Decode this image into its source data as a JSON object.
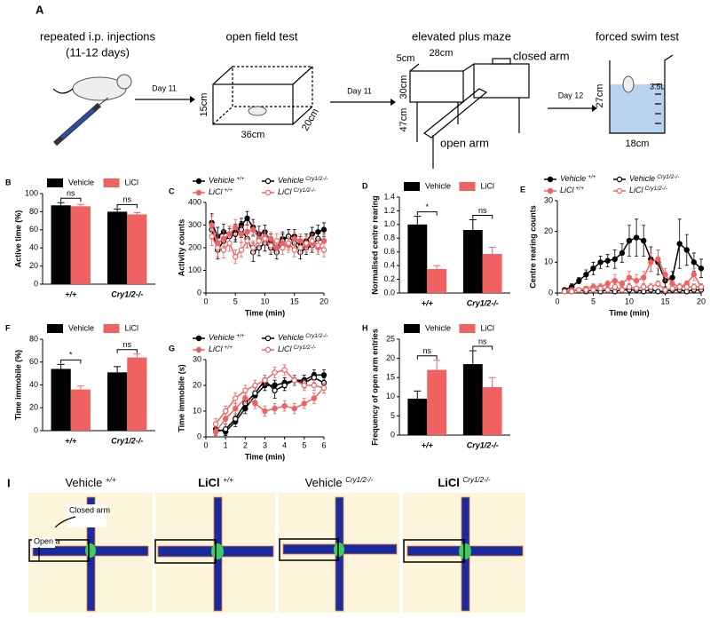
{
  "panel_a": {
    "letter": "A",
    "steps": [
      "repeated i.p. injections",
      "open field test",
      "elevated plus maze",
      "forced swim test"
    ],
    "duration": "(11-12 days)",
    "days": [
      "Day 11",
      "Day 11",
      "Day 12"
    ],
    "box_dims": [
      "15cm",
      "36cm",
      "20cm"
    ],
    "maze_dims": [
      "5cm",
      "28cm",
      "30cm",
      "47cm"
    ],
    "maze_labels": [
      "closed arm",
      "open arm"
    ],
    "beaker_dims": [
      "27cm",
      "18cm"
    ],
    "volume": "3.5L"
  },
  "chart_data": [
    {
      "type": "bar",
      "panel": "B",
      "ylabel": "Active time (%)",
      "categories": [
        "+/+",
        "Cry1/2-/-"
      ],
      "series": [
        {
          "name": "Vehicle",
          "color": "#000000",
          "values": [
            87,
            80
          ],
          "errors": [
            3,
            3
          ]
        },
        {
          "name": "LiCl",
          "color": "#f06262",
          "values": [
            86,
            77
          ],
          "errors": [
            2,
            2
          ]
        }
      ],
      "ylim": [
        0,
        100
      ],
      "yticks": [
        0,
        20,
        40,
        60,
        80,
        100
      ],
      "significance": [
        "ns",
        "ns"
      ]
    },
    {
      "type": "line",
      "panel": "C",
      "xlabel": "Time (min)",
      "ylabel": "Activity counts",
      "x": [
        1,
        2,
        3,
        4,
        5,
        6,
        7,
        8,
        9,
        10,
        11,
        12,
        13,
        14,
        15,
        16,
        17,
        18,
        19,
        20
      ],
      "xlim": [
        0,
        20
      ],
      "xticks": [
        0,
        5,
        10,
        15,
        20
      ],
      "ylim": [
        0,
        400
      ],
      "yticks": [
        0,
        100,
        200,
        300,
        400
      ],
      "series": [
        {
          "name": "Vehicle",
          "sup": "+/+",
          "color": "#000000",
          "marker": "filled",
          "values": [
            310,
            250,
            270,
            260,
            270,
            300,
            330,
            290,
            260,
            270,
            230,
            200,
            240,
            250,
            250,
            220,
            230,
            260,
            270,
            280
          ],
          "errors": [
            40,
            40,
            35,
            35,
            35,
            30,
            30,
            35,
            35,
            30,
            30,
            30,
            30,
            30,
            30,
            30,
            30,
            30,
            30,
            30
          ]
        },
        {
          "name": "Vehicle",
          "sup": "Cry1/2-/-",
          "color": "#000000",
          "marker": "open",
          "values": [
            280,
            190,
            230,
            250,
            260,
            280,
            240,
            180,
            200,
            220,
            200,
            180,
            230,
            250,
            220,
            180,
            200,
            210,
            240,
            230
          ],
          "errors": [
            40,
            40,
            35,
            35,
            35,
            35,
            40,
            40,
            35,
            35,
            30,
            30,
            30,
            30,
            30,
            30,
            30,
            30,
            30,
            30
          ]
        },
        {
          "name": "LiCl",
          "sup": "+/+",
          "color": "#f06262",
          "marker": "filled",
          "values": [
            300,
            220,
            240,
            260,
            290,
            260,
            270,
            280,
            240,
            250,
            240,
            200,
            220,
            210,
            240,
            230,
            210,
            220,
            200,
            230
          ],
          "errors": [
            40,
            40,
            35,
            35,
            35,
            35,
            35,
            30,
            30,
            30,
            30,
            30,
            30,
            30,
            30,
            30,
            30,
            30,
            30,
            30
          ]
        },
        {
          "name": "LiCl",
          "sup": "Cry1/2-/-",
          "color": "#f06262",
          "marker": "open",
          "values": [
            250,
            200,
            190,
            220,
            160,
            190,
            230,
            200,
            230,
            240,
            210,
            230,
            200,
            220,
            190,
            200,
            220,
            230,
            210,
            190
          ],
          "errors": [
            40,
            40,
            35,
            35,
            30,
            30,
            30,
            30,
            30,
            30,
            30,
            30,
            30,
            30,
            30,
            30,
            30,
            30,
            30,
            30
          ]
        }
      ]
    },
    {
      "type": "bar",
      "panel": "D",
      "ylabel": "Normalised centre rearing",
      "categories": [
        "+/+",
        "Cry1/2-/-"
      ],
      "series": [
        {
          "name": "Vehicle",
          "color": "#000000",
          "values": [
            1.0,
            0.92
          ],
          "errors": [
            0.12,
            0.15
          ]
        },
        {
          "name": "LiCl",
          "color": "#f06262",
          "values": [
            0.35,
            0.57
          ],
          "errors": [
            0.05,
            0.1
          ]
        }
      ],
      "ylim": [
        0,
        1.4
      ],
      "yticks": [
        {
          "value": 0,
          "label": "0.0"
        },
        0.2,
        0.4,
        0.6,
        0.8,
        {
          "value": 1,
          "label": "1.0"
        },
        1.2,
        1.4
      ],
      "significance": [
        "*",
        "ns"
      ]
    },
    {
      "type": "line",
      "panel": "E",
      "xlabel": "Time (min)",
      "ylabel": "Centre rearing counts",
      "x": [
        1,
        2,
        3,
        4,
        5,
        6,
        7,
        8,
        9,
        10,
        11,
        12,
        13,
        14,
        15,
        16,
        17,
        18,
        19,
        20
      ],
      "xlim": [
        0,
        20
      ],
      "xticks": [
        0,
        5,
        10,
        15,
        20
      ],
      "ylim": [
        0,
        30
      ],
      "yticks": [
        0,
        10,
        20,
        30
      ],
      "series": [
        {
          "name": "Vehicle",
          "sup": "+/+",
          "color": "#000000",
          "marker": "filled",
          "values": [
            1,
            2,
            4,
            6,
            8,
            10,
            10.5,
            11,
            13,
            17,
            18,
            17,
            11,
            10,
            4,
            5,
            16,
            14,
            10,
            8
          ],
          "errors": [
            0.5,
            1,
            1,
            1.5,
            2,
            2,
            2,
            3,
            3,
            5,
            6,
            5,
            4,
            4,
            2,
            2,
            8,
            5,
            3,
            3
          ]
        },
        {
          "name": "Vehicle",
          "sup": "Cry1/2-/-",
          "color": "#000000",
          "marker": "open",
          "values": [
            0.5,
            0.5,
            1,
            0.5,
            1,
            0.5,
            1,
            0.5,
            1,
            1,
            1,
            0.5,
            1,
            0.5,
            0.5,
            1,
            1,
            0.5,
            1,
            1
          ],
          "errors": [
            0.3,
            0.3,
            0.5,
            0.3,
            0.5,
            0.3,
            0.5,
            0.3,
            0.5,
            0.5,
            0.5,
            0.3,
            0.5,
            0.3,
            0.3,
            0.5,
            0.5,
            0.3,
            0.5,
            0.5
          ]
        },
        {
          "name": "LiCl",
          "sup": "+/+",
          "color": "#f06262",
          "marker": "filled",
          "values": [
            0.5,
            1,
            1,
            1.5,
            2,
            2,
            3,
            4,
            3,
            5,
            4,
            5,
            10,
            11,
            6,
            3,
            2,
            3,
            6,
            2
          ],
          "errors": [
            0.3,
            0.5,
            0.5,
            0.5,
            1,
            1,
            1,
            2,
            1,
            2,
            2,
            2,
            3,
            3,
            2,
            1,
            1,
            1,
            2,
            1
          ]
        },
        {
          "name": "LiCl",
          "sup": "Cry1/2-/-",
          "color": "#f06262",
          "marker": "open",
          "values": [
            0.5,
            0.5,
            1,
            1,
            1,
            1.5,
            1,
            2,
            1,
            2,
            1.5,
            2,
            2,
            3,
            1,
            1.5,
            2,
            2,
            2,
            2
          ],
          "errors": [
            0.3,
            0.3,
            0.5,
            0.5,
            0.5,
            0.5,
            0.5,
            1,
            0.5,
            1,
            0.5,
            1,
            1,
            1,
            0.5,
            0.5,
            1,
            1,
            1,
            1
          ]
        }
      ]
    },
    {
      "type": "bar",
      "panel": "F",
      "ylabel": "Time immobile (%)",
      "categories": [
        "+/+",
        "Cry1/2-/-"
      ],
      "series": [
        {
          "name": "Vehicle",
          "color": "#000000",
          "values": [
            54,
            51
          ],
          "errors": [
            4,
            5
          ]
        },
        {
          "name": "LiCl",
          "color": "#f06262",
          "values": [
            36,
            64
          ],
          "errors": [
            3,
            3
          ]
        }
      ],
      "ylim": [
        0,
        80
      ],
      "yticks": [
        0,
        20,
        40,
        60,
        80
      ],
      "significance": [
        "*",
        "ns"
      ]
    },
    {
      "type": "line",
      "panel": "G",
      "xlabel": "Time (min)",
      "ylabel": "Time immobile (s)",
      "x": [
        0.5,
        1,
        1.5,
        2,
        2.5,
        3,
        3.5,
        4,
        4.5,
        5,
        5.5,
        6
      ],
      "xlim": [
        0,
        6
      ],
      "xticks": [
        0,
        1,
        2,
        3,
        4,
        5,
        6
      ],
      "ylim": [
        0,
        30
      ],
      "yticks": [
        0,
        10,
        20,
        30
      ],
      "series": [
        {
          "name": "Vehicle",
          "sup": "+/+",
          "color": "#000000",
          "marker": "filled",
          "values": [
            3,
            2,
            6,
            11,
            16,
            20,
            20,
            21,
            22,
            22,
            24,
            24
          ],
          "errors": [
            2,
            1.5,
            2,
            2,
            2,
            2,
            2,
            2,
            2,
            2,
            2,
            2
          ]
        },
        {
          "name": "Vehicle",
          "sup": "Cry1/2-/-",
          "color": "#000000",
          "marker": "open",
          "values": [
            2,
            3,
            7,
            13,
            17,
            22,
            18,
            20,
            22,
            21,
            23,
            21
          ],
          "errors": [
            1.5,
            2,
            2,
            2,
            2,
            2,
            3,
            2,
            2,
            2,
            2,
            2
          ]
        },
        {
          "name": "LiCl",
          "sup": "+/+",
          "color": "#f06262",
          "marker": "filled",
          "values": [
            2,
            7,
            11,
            15,
            13,
            10,
            11,
            12,
            11,
            13,
            15,
            19
          ],
          "errors": [
            1.5,
            2,
            2,
            2,
            2,
            2,
            2,
            2,
            2,
            2,
            2,
            2
          ]
        },
        {
          "name": "LiCl",
          "sup": "Cry1/2-/-",
          "color": "#f06262",
          "marker": "open",
          "values": [
            5,
            10,
            15,
            18,
            20,
            22,
            25,
            26,
            22,
            20,
            20,
            19
          ],
          "errors": [
            2,
            2,
            2,
            2,
            2,
            2,
            2,
            2,
            2,
            2,
            2,
            2
          ]
        }
      ]
    },
    {
      "type": "bar",
      "panel": "H",
      "ylabel": "Frequency of open arm entries",
      "categories": [
        "+/+",
        "Cry1/2-/-"
      ],
      "series": [
        {
          "name": "Vehicle",
          "color": "#000000",
          "values": [
            9.5,
            18.5
          ],
          "errors": [
            2,
            3.5
          ]
        },
        {
          "name": "LiCl",
          "color": "#f06262",
          "values": [
            17,
            12.5
          ],
          "errors": [
            2.5,
            2.5
          ]
        }
      ],
      "ylim": [
        0,
        25
      ],
      "yticks": [
        0,
        5,
        10,
        15,
        20,
        25
      ],
      "significance": [
        "ns",
        "ns"
      ]
    }
  ],
  "panel_i": {
    "letter": "I",
    "labels": [
      {
        "name": "Vehicle",
        "sup": "+/+"
      },
      {
        "name": "LiCl",
        "sup": "+/+"
      },
      {
        "name": "Vehicle",
        "sup": "Cry1/2-/-"
      },
      {
        "name": "LiCl",
        "sup": "Cry1/2-/-"
      }
    ],
    "callouts": [
      "Closed arm",
      "Open a"
    ]
  }
}
